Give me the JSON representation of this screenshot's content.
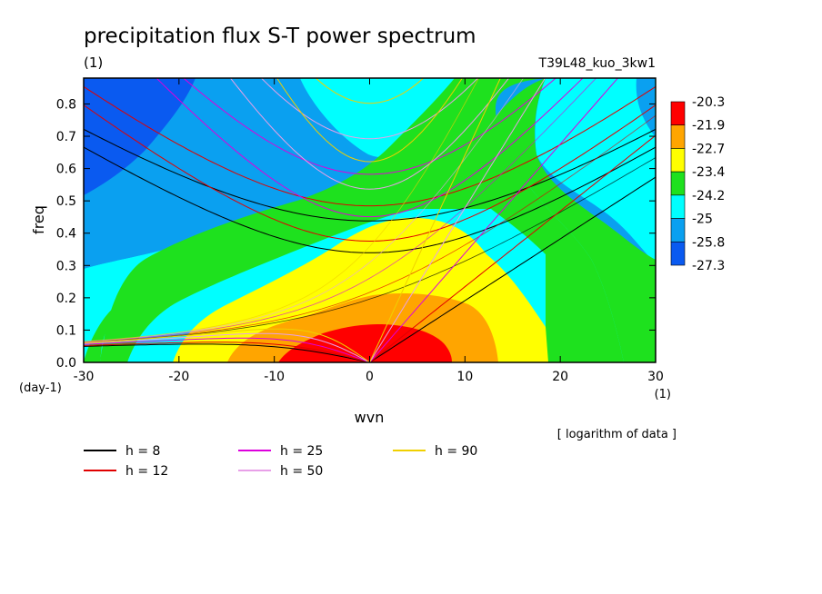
{
  "chart_data": {
    "type": "heatmap",
    "title": "precipitation flux S-T power spectrum",
    "subtitle_left": "(1)",
    "subtitle_right": "T39L48_kuo_3kw1",
    "xlabel": "wvn",
    "ylabel": "freq",
    "x_unit": "(1)",
    "y_unit": "(day-1)",
    "data_note": "[ logarithm of data ]",
    "xlim": [
      -30,
      30
    ],
    "ylim": [
      0,
      0.88
    ],
    "x_ticks": [
      "-30",
      "-20",
      "-10",
      "0",
      "10",
      "20",
      "30"
    ],
    "y_ticks": [
      "0.0",
      "0.1",
      "0.2",
      "0.3",
      "0.4",
      "0.5",
      "0.6",
      "0.7",
      "0.8"
    ],
    "colorbar": {
      "labels": [
        "-20.3",
        "-21.9",
        "-22.7",
        "-23.4",
        "-24.2",
        "-25",
        "-25.8",
        "-27.3"
      ],
      "colors": [
        "#ff0000",
        "#ffa500",
        "#ffff00",
        "#1ee11e",
        "#00ffff",
        "#0aa0f0",
        "#0a5af0"
      ]
    },
    "dispersion_curves": [
      {
        "label": "h =  8",
        "h": 8,
        "color": "#000000"
      },
      {
        "label": "h = 12",
        "h": 12,
        "color": "#e00000"
      },
      {
        "label": "h = 25",
        "h": 25,
        "color": "#dd00dd"
      },
      {
        "label": "h = 50",
        "h": 50,
        "color": "#e8a0e8"
      },
      {
        "label": "h = 90",
        "h": 90,
        "color": "#f0d000"
      }
    ]
  }
}
